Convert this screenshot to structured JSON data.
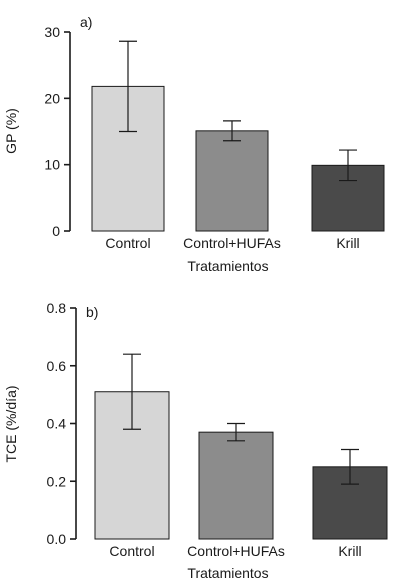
{
  "chart_data": [
    {
      "type": "bar",
      "panel_label": "a)",
      "title": "",
      "xlabel": "Tratamientos",
      "ylabel": "GP (%)",
      "ylim": [
        0,
        30
      ],
      "yticks": [
        "0",
        "10",
        "20",
        "30"
      ],
      "grid": false,
      "categories": [
        "Control",
        "Control+HUFAs",
        "Krill"
      ],
      "values": [
        21.8,
        15.1,
        9.9
      ],
      "errors": [
        6.8,
        1.5,
        2.3
      ],
      "bar_colors": [
        "#d6d6d6",
        "#8c8c8c",
        "#4a4a4a"
      ]
    },
    {
      "type": "bar",
      "panel_label": "b)",
      "title": "",
      "xlabel": "Tratamientos",
      "ylabel": "TCE (%/día)",
      "ylim": [
        0,
        0.8
      ],
      "yticks": [
        "0.0",
        "0.2",
        "0.4",
        "0.6",
        "0.8"
      ],
      "grid": false,
      "categories": [
        "Control",
        "Control+HUFAs",
        "Krill"
      ],
      "values": [
        0.51,
        0.37,
        0.25
      ],
      "errors": [
        0.13,
        0.03,
        0.06
      ],
      "bar_colors": [
        "#d6d6d6",
        "#8c8c8c",
        "#4a4a4a"
      ]
    }
  ]
}
